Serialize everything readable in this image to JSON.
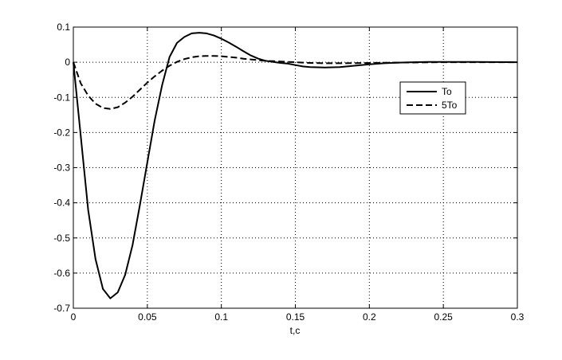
{
  "chart_data": {
    "type": "line",
    "title": "",
    "xlabel": "t,c",
    "ylabel": "",
    "xlim": [
      0,
      0.3
    ],
    "ylim": [
      -0.7,
      0.1
    ],
    "x_ticks": [
      0,
      0.05,
      0.1,
      0.15,
      0.2,
      0.25,
      0.3
    ],
    "x_tick_labels": [
      "0",
      "0.05",
      "0.1",
      "0.15",
      "0.2",
      "0.25",
      "0.3"
    ],
    "y_ticks": [
      0.1,
      0,
      -0.1,
      -0.2,
      -0.3,
      -0.4,
      -0.5,
      -0.6,
      -0.7
    ],
    "y_tick_labels": [
      "0.1",
      "0",
      "-0.1",
      "-0.2",
      "-0.3",
      "-0.4",
      "-0.5",
      "-0.6",
      "-0.7"
    ],
    "grid": true,
    "legend_position": "right",
    "series": [
      {
        "name": "To",
        "style": "solid",
        "color": "#000000",
        "x": [
          0,
          0.005,
          0.01,
          0.015,
          0.02,
          0.025,
          0.03,
          0.035,
          0.04,
          0.045,
          0.05,
          0.055,
          0.06,
          0.065,
          0.07,
          0.075,
          0.08,
          0.085,
          0.09,
          0.095,
          0.1,
          0.105,
          0.11,
          0.115,
          0.12,
          0.125,
          0.13,
          0.135,
          0.14,
          0.145,
          0.15,
          0.155,
          0.16,
          0.17,
          0.18,
          0.19,
          0.2,
          0.21,
          0.22,
          0.23,
          0.24,
          0.25,
          0.27,
          0.3
        ],
        "y": [
          0,
          -0.21,
          -0.42,
          -0.56,
          -0.645,
          -0.672,
          -0.655,
          -0.605,
          -0.52,
          -0.405,
          -0.285,
          -0.165,
          -0.065,
          0.015,
          0.055,
          0.072,
          0.082,
          0.084,
          0.082,
          0.076,
          0.067,
          0.056,
          0.044,
          0.031,
          0.019,
          0.01,
          0.004,
          0.001,
          -0.002,
          -0.004,
          -0.008,
          -0.012,
          -0.014,
          -0.015,
          -0.014,
          -0.01,
          -0.006,
          -0.003,
          -0.001,
          0,
          0.001,
          0.001,
          0.001,
          0
        ]
      },
      {
        "name": "5To",
        "style": "dashed",
        "color": "#000000",
        "x": [
          0,
          0.005,
          0.01,
          0.015,
          0.02,
          0.025,
          0.03,
          0.035,
          0.04,
          0.045,
          0.05,
          0.055,
          0.06,
          0.065,
          0.07,
          0.075,
          0.08,
          0.085,
          0.09,
          0.095,
          0.1,
          0.105,
          0.11,
          0.115,
          0.12,
          0.125,
          0.13,
          0.135,
          0.14,
          0.145,
          0.15,
          0.155,
          0.16,
          0.17,
          0.18,
          0.2,
          0.22,
          0.25,
          0.3
        ],
        "y": [
          0,
          -0.06,
          -0.095,
          -0.118,
          -0.13,
          -0.133,
          -0.128,
          -0.115,
          -0.098,
          -0.078,
          -0.058,
          -0.04,
          -0.024,
          -0.01,
          0.001,
          0.009,
          0.014,
          0.017,
          0.018,
          0.018,
          0.017,
          0.015,
          0.013,
          0.01,
          0.008,
          0.006,
          0.004,
          0.003,
          0.002,
          0.001,
          0,
          -0.001,
          -0.002,
          -0.003,
          -0.003,
          -0.002,
          -0.001,
          0,
          0
        ]
      }
    ]
  }
}
